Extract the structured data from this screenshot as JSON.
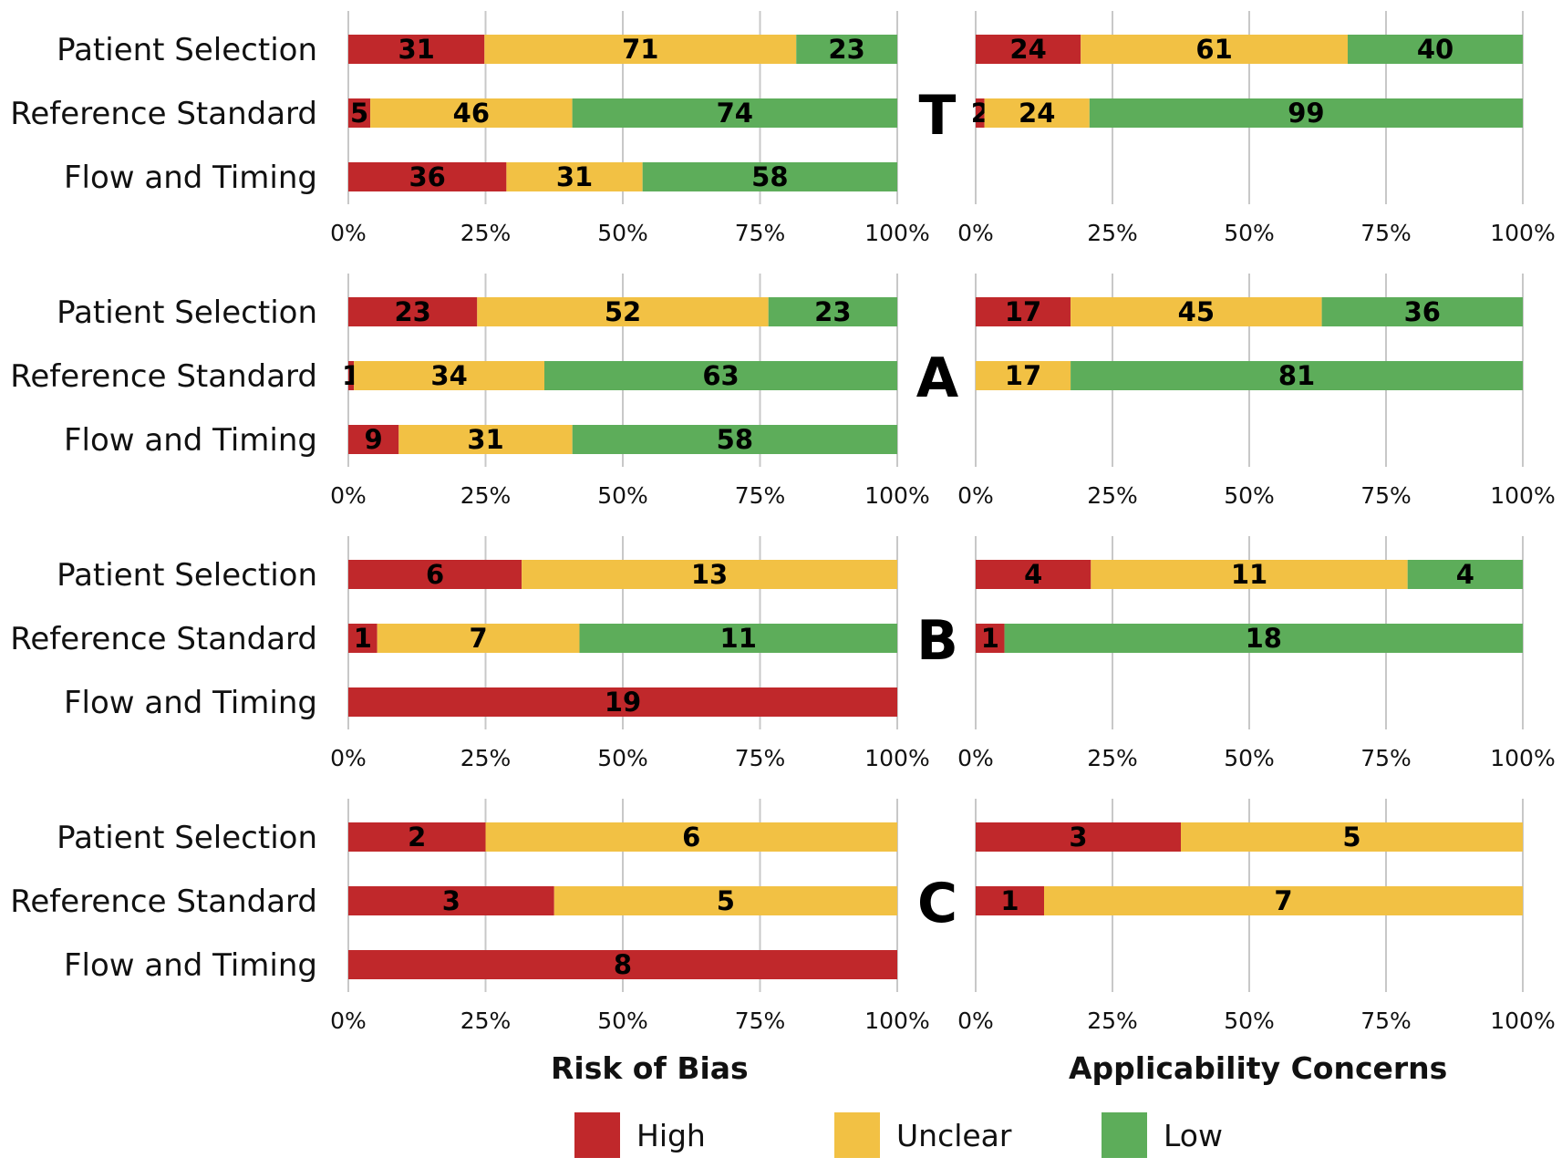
{
  "colors": {
    "High": "#c0282b",
    "Unclear": "#f2c144",
    "Low": "#5dad5a",
    "grid": "#c8c8c8"
  },
  "footer": {
    "left_title": "Risk of Bias",
    "right_title": "Applicability Concerns"
  },
  "legend": [
    {
      "label": "High",
      "color": "#c0282b"
    },
    {
      "label": "Unclear",
      "color": "#f2c144"
    },
    {
      "label": "Low",
      "color": "#5dad5a"
    }
  ],
  "chart_data": {
    "type": "bar",
    "orientation": "horizontal-stacked-percent",
    "categories": [
      "Patient Selection",
      "Reference Standard",
      "Flow and Timing"
    ],
    "series_names": [
      "High",
      "Unclear",
      "Low"
    ],
    "x_ticks": [
      "0%",
      "25%",
      "50%",
      "75%",
      "100%"
    ],
    "xlim": [
      0,
      100
    ],
    "grid": true,
    "legend_position": "bottom",
    "panels": [
      {
        "letter": "T",
        "risk_of_bias": [
          {
            "category": "Patient Selection",
            "High": 31,
            "Unclear": 71,
            "Low": 23
          },
          {
            "category": "Reference Standard",
            "High": 5,
            "Unclear": 46,
            "Low": 74
          },
          {
            "category": "Flow and Timing",
            "High": 36,
            "Unclear": 31,
            "Low": 58
          }
        ],
        "applicability": [
          {
            "category": "Patient Selection",
            "High": 24,
            "Unclear": 61,
            "Low": 40
          },
          {
            "category": "Reference Standard",
            "High": 2,
            "Unclear": 24,
            "Low": 99
          }
        ]
      },
      {
        "letter": "A",
        "risk_of_bias": [
          {
            "category": "Patient Selection",
            "High": 23,
            "Unclear": 52,
            "Low": 23
          },
          {
            "category": "Reference Standard",
            "High": 1,
            "Unclear": 34,
            "Low": 63
          },
          {
            "category": "Flow and Timing",
            "High": 9,
            "Unclear": 31,
            "Low": 58
          }
        ],
        "applicability": [
          {
            "category": "Patient Selection",
            "High": 17,
            "Unclear": 45,
            "Low": 36
          },
          {
            "category": "Reference Standard",
            "High": 0,
            "Unclear": 17,
            "Low": 81
          }
        ]
      },
      {
        "letter": "B",
        "risk_of_bias": [
          {
            "category": "Patient Selection",
            "High": 6,
            "Unclear": 13,
            "Low": 0
          },
          {
            "category": "Reference Standard",
            "High": 1,
            "Unclear": 7,
            "Low": 11
          },
          {
            "category": "Flow and Timing",
            "High": 19,
            "Unclear": 0,
            "Low": 0
          }
        ],
        "applicability": [
          {
            "category": "Patient Selection",
            "High": 4,
            "Unclear": 11,
            "Low": 4
          },
          {
            "category": "Reference Standard",
            "High": 1,
            "Unclear": 0,
            "Low": 18
          }
        ]
      },
      {
        "letter": "C",
        "risk_of_bias": [
          {
            "category": "Patient Selection",
            "High": 2,
            "Unclear": 6,
            "Low": 0
          },
          {
            "category": "Reference Standard",
            "High": 3,
            "Unclear": 5,
            "Low": 0
          },
          {
            "category": "Flow and Timing",
            "High": 8,
            "Unclear": 0,
            "Low": 0
          }
        ],
        "applicability": [
          {
            "category": "Patient Selection",
            "High": 3,
            "Unclear": 5,
            "Low": 0
          },
          {
            "category": "Reference Standard",
            "High": 1,
            "Unclear": 7,
            "Low": 0
          }
        ]
      }
    ]
  }
}
